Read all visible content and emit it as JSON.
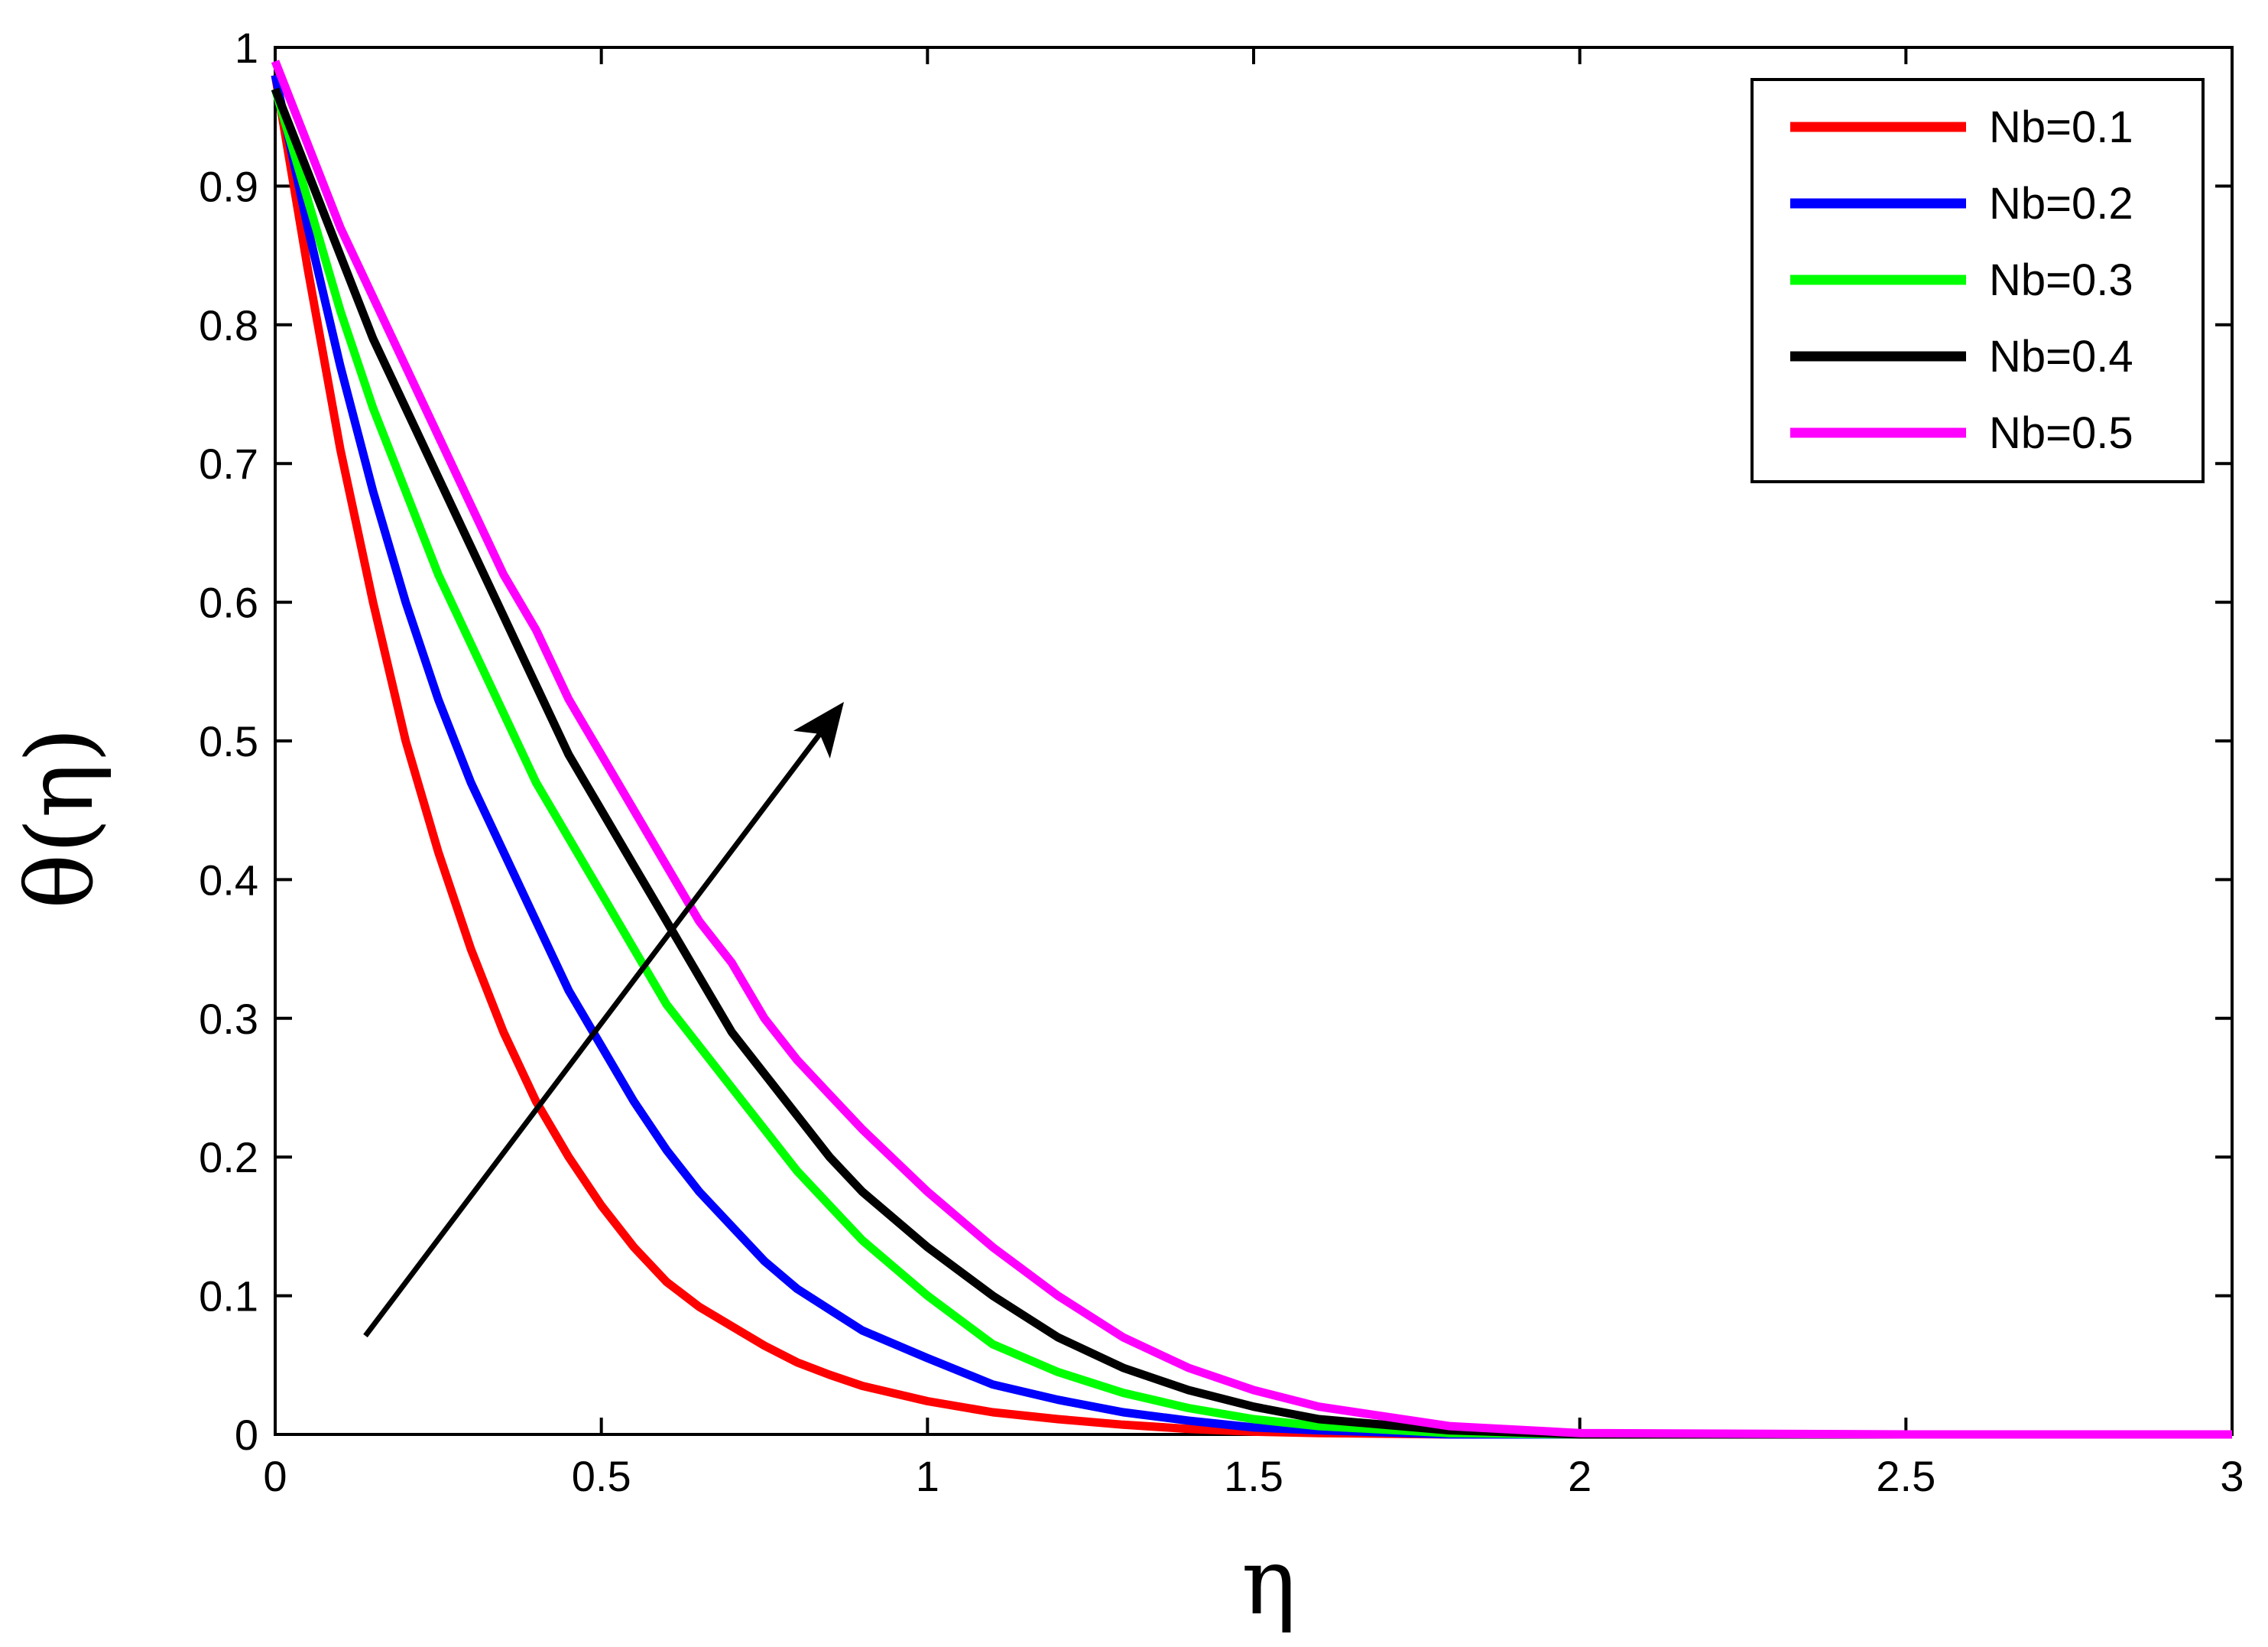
{
  "chart_data": {
    "type": "line",
    "title": "",
    "xlabel": "η",
    "ylabel": "θ(η)",
    "xlim": [
      0,
      3
    ],
    "ylim": [
      0,
      1
    ],
    "xticks": [
      0,
      0.5,
      1,
      1.5,
      2,
      2.5,
      3
    ],
    "xtick_labels": [
      "0",
      "0.5",
      "1",
      "1.5",
      "2",
      "2.5",
      "3"
    ],
    "yticks": [
      0,
      0.1,
      0.2,
      0.3,
      0.4,
      0.5,
      0.6,
      0.7,
      0.8,
      0.9,
      1
    ],
    "ytick_labels": [
      "0",
      "0.1",
      "0.2",
      "0.3",
      "0.4",
      "0.5",
      "0.6",
      "0.7",
      "0.8",
      "0.9",
      "1"
    ],
    "grid": false,
    "legend_position": "top-right",
    "annotation": "arrow indicating increasing Nb",
    "series": [
      {
        "name": "Nb=0.1",
        "color": "#ff0000",
        "x": [
          0,
          0.05,
          0.1,
          0.15,
          0.2,
          0.25,
          0.3,
          0.35,
          0.4,
          0.45,
          0.5,
          0.55,
          0.6,
          0.65,
          0.7,
          0.75,
          0.8,
          0.85,
          0.9,
          1.0,
          1.1,
          1.2,
          1.3,
          1.4,
          1.5,
          1.6,
          1.8,
          2.0,
          2.5,
          3.0
        ],
        "y": [
          0.98,
          0.84,
          0.71,
          0.6,
          0.5,
          0.42,
          0.35,
          0.29,
          0.24,
          0.2,
          0.165,
          0.135,
          0.11,
          0.092,
          0.078,
          0.064,
          0.052,
          0.043,
          0.035,
          0.024,
          0.016,
          0.011,
          0.007,
          0.004,
          0.002,
          0.001,
          0.0,
          0.0,
          0.0,
          0.0
        ]
      },
      {
        "name": "Nb=0.2",
        "color": "#0000ff",
        "x": [
          0,
          0.05,
          0.1,
          0.15,
          0.2,
          0.25,
          0.3,
          0.35,
          0.4,
          0.45,
          0.5,
          0.55,
          0.6,
          0.65,
          0.7,
          0.75,
          0.8,
          0.85,
          0.9,
          1.0,
          1.1,
          1.2,
          1.3,
          1.4,
          1.5,
          1.6,
          1.8,
          2.0,
          2.5,
          3.0
        ],
        "y": [
          0.98,
          0.87,
          0.77,
          0.68,
          0.6,
          0.53,
          0.47,
          0.42,
          0.37,
          0.32,
          0.28,
          0.24,
          0.205,
          0.175,
          0.15,
          0.125,
          0.105,
          0.09,
          0.075,
          0.055,
          0.036,
          0.025,
          0.016,
          0.01,
          0.005,
          0.003,
          0.0,
          0.0,
          0.0,
          0.0
        ]
      },
      {
        "name": "Nb=0.3",
        "color": "#00ff00",
        "x": [
          0,
          0.05,
          0.1,
          0.15,
          0.2,
          0.25,
          0.3,
          0.35,
          0.4,
          0.45,
          0.5,
          0.55,
          0.6,
          0.65,
          0.7,
          0.75,
          0.8,
          0.85,
          0.9,
          1.0,
          1.1,
          1.2,
          1.3,
          1.4,
          1.5,
          1.6,
          1.8,
          2.0,
          2.5,
          3.0
        ],
        "y": [
          0.97,
          0.89,
          0.81,
          0.74,
          0.68,
          0.62,
          0.57,
          0.52,
          0.47,
          0.43,
          0.39,
          0.35,
          0.31,
          0.28,
          0.25,
          0.22,
          0.19,
          0.165,
          0.14,
          0.1,
          0.065,
          0.045,
          0.03,
          0.019,
          0.011,
          0.006,
          0.001,
          0.0,
          0.0,
          0.0
        ]
      },
      {
        "name": "Nb=0.4",
        "color": "#000000",
        "x": [
          0,
          0.05,
          0.1,
          0.15,
          0.2,
          0.25,
          0.3,
          0.35,
          0.4,
          0.45,
          0.5,
          0.55,
          0.6,
          0.65,
          0.7,
          0.75,
          0.8,
          0.85,
          0.9,
          1.0,
          1.1,
          1.2,
          1.3,
          1.4,
          1.5,
          1.6,
          1.8,
          2.0,
          2.5,
          3.0
        ],
        "y": [
          0.97,
          0.91,
          0.85,
          0.79,
          0.74,
          0.69,
          0.64,
          0.59,
          0.54,
          0.49,
          0.45,
          0.41,
          0.37,
          0.33,
          0.29,
          0.26,
          0.23,
          0.2,
          0.175,
          0.135,
          0.1,
          0.07,
          0.048,
          0.032,
          0.02,
          0.011,
          0.003,
          0.0,
          0.0,
          0.0
        ]
      },
      {
        "name": "Nb=0.5",
        "color": "#ff00ff",
        "x": [
          0,
          0.05,
          0.1,
          0.15,
          0.2,
          0.25,
          0.3,
          0.35,
          0.4,
          0.45,
          0.5,
          0.55,
          0.6,
          0.65,
          0.7,
          0.75,
          0.8,
          0.85,
          0.9,
          1.0,
          1.1,
          1.2,
          1.3,
          1.4,
          1.5,
          1.6,
          1.8,
          2.0,
          2.5,
          3.0
        ],
        "y": [
          0.99,
          0.93,
          0.87,
          0.82,
          0.77,
          0.72,
          0.67,
          0.62,
          0.58,
          0.53,
          0.49,
          0.45,
          0.41,
          0.37,
          0.34,
          0.3,
          0.27,
          0.245,
          0.22,
          0.175,
          0.135,
          0.1,
          0.07,
          0.048,
          0.032,
          0.02,
          0.006,
          0.001,
          0.0,
          0.0
        ]
      }
    ]
  }
}
